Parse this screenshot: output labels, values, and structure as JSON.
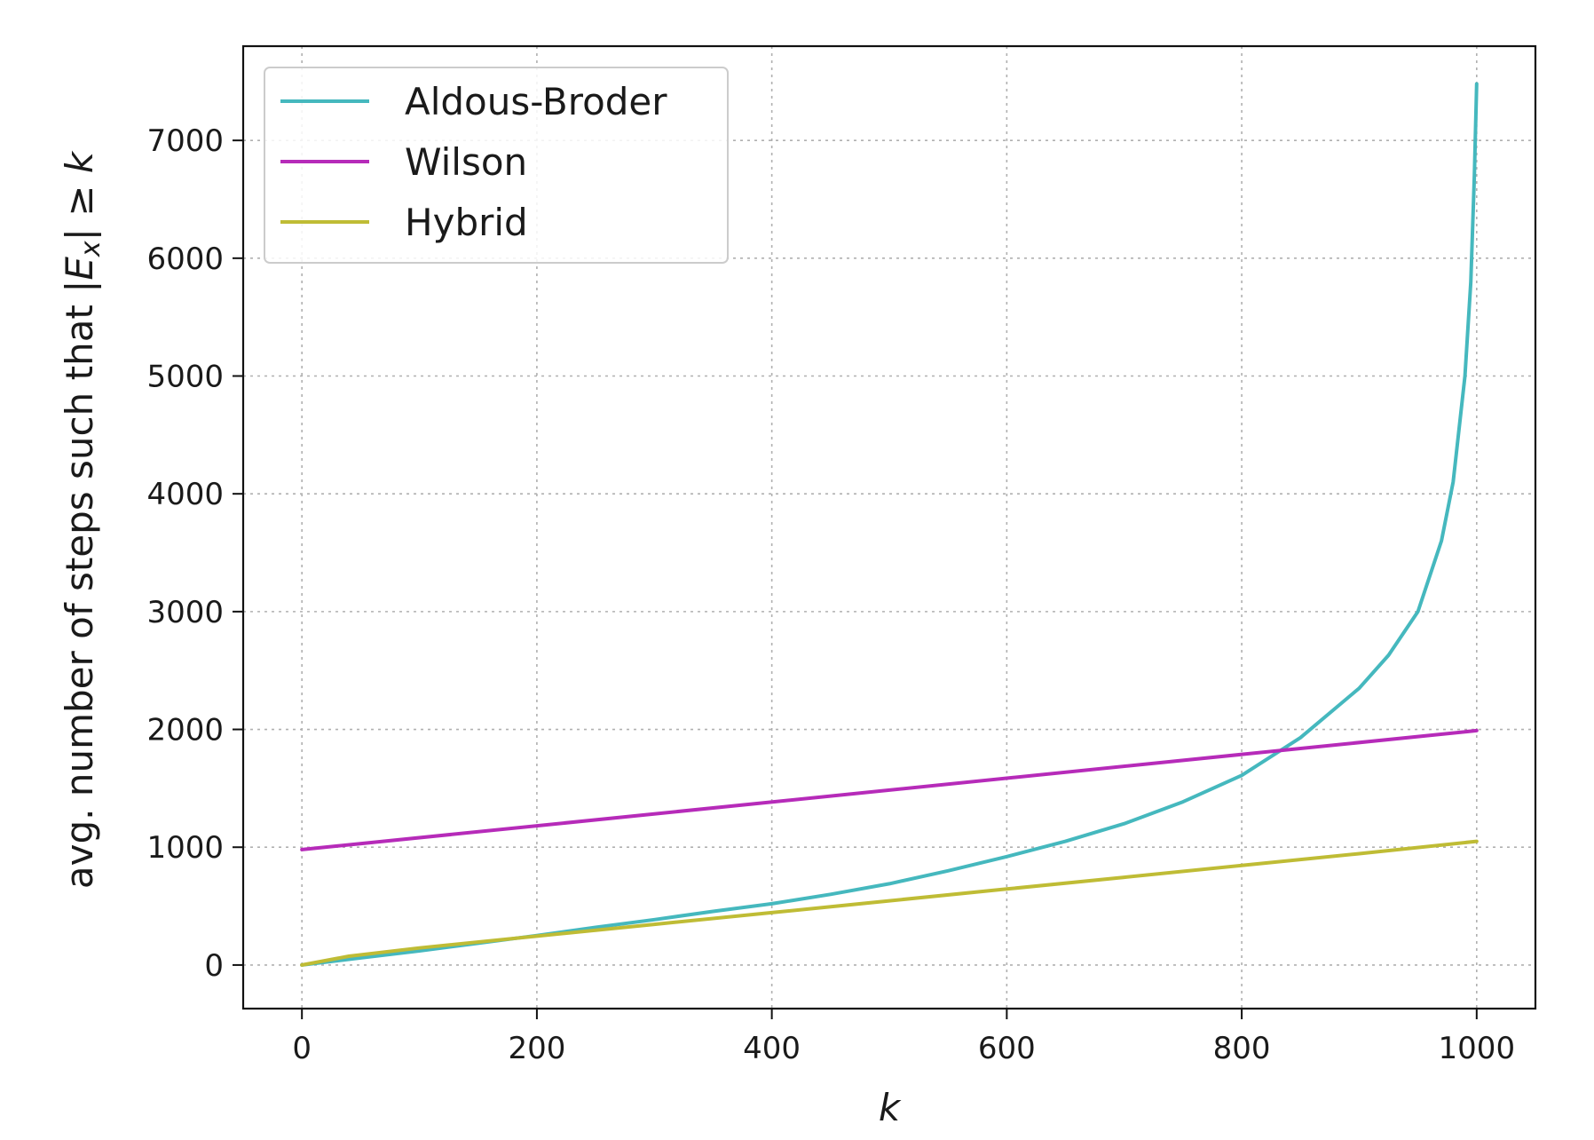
{
  "chart_data": {
    "type": "line",
    "xlabel": "k",
    "ylabel": "avg. number of steps such that |E_x| ≥ k",
    "ylabel_parts": {
      "prefix": "avg. number of steps such that |",
      "var": "E",
      "sub": "x",
      "bar": "|",
      "geq": " ≥ ",
      "k": "k"
    },
    "xlim": [
      -50,
      1050
    ],
    "ylim": [
      -370,
      7800
    ],
    "x_ticks": [
      0,
      200,
      400,
      600,
      800,
      1000
    ],
    "x_tick_labels": [
      "0",
      "200",
      "400",
      "600",
      "800",
      "1000"
    ],
    "y_ticks": [
      0,
      1000,
      2000,
      3000,
      4000,
      5000,
      6000,
      7000
    ],
    "y_tick_labels": [
      "0",
      "1000",
      "2000",
      "3000",
      "4000",
      "5000",
      "6000",
      "7000"
    ],
    "grid": true,
    "legend_position": "upper-left",
    "series": [
      {
        "name": "Aldous-Broder",
        "color": "#45b8be",
        "x": [
          0,
          50,
          100,
          150,
          200,
          250,
          300,
          350,
          400,
          450,
          500,
          550,
          600,
          650,
          700,
          750,
          800,
          850,
          900,
          925,
          950,
          970,
          980,
          990,
          995,
          998,
          1000
        ],
        "y": [
          0,
          60,
          120,
          185,
          250,
          320,
          385,
          455,
          520,
          600,
          690,
          800,
          920,
          1050,
          1200,
          1385,
          1610,
          1930,
          2350,
          2630,
          3000,
          3600,
          4100,
          5000,
          5800,
          6700,
          7480
        ]
      },
      {
        "name": "Wilson",
        "color": "#b62bb9",
        "x": [
          0,
          1000
        ],
        "y": [
          980,
          1990
        ]
      },
      {
        "name": "Hybrid",
        "color": "#bfbc35",
        "x": [
          0,
          40,
          100,
          200,
          300,
          400,
          500,
          600,
          700,
          800,
          900,
          1000
        ],
        "y": [
          0,
          75,
          145,
          245,
          345,
          445,
          545,
          645,
          745,
          845,
          945,
          1050
        ]
      }
    ]
  }
}
